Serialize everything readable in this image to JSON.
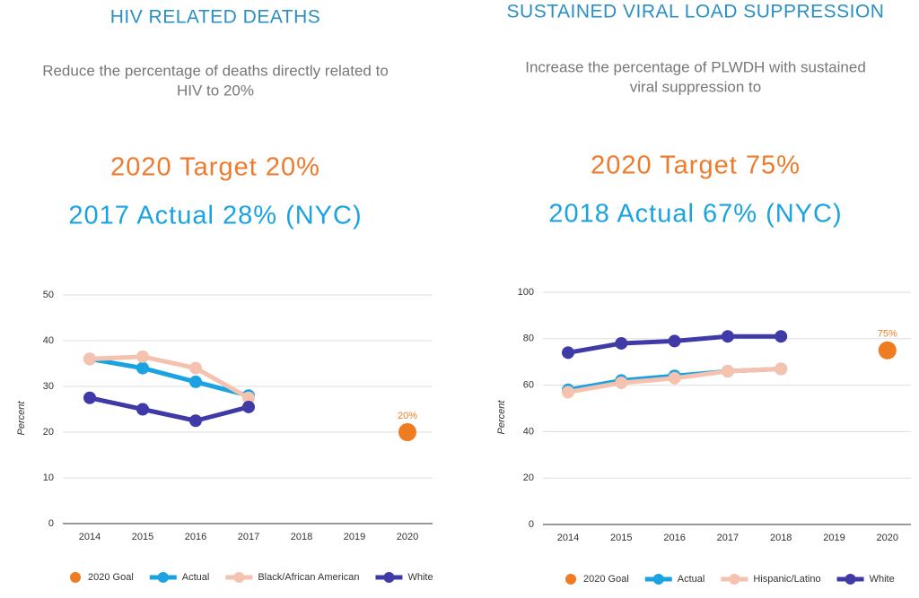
{
  "chart_data": [
    {
      "type": "line",
      "title": "HIV RELATED DEATHS",
      "subtitle": [
        "Reduce the percentage of deaths directly related to",
        "HIV to 20%"
      ],
      "target": "2020 Target 20%",
      "actual": "2017 Actual 28% (NYC)",
      "y_label": "Percent",
      "categories": [
        "2014",
        "2015",
        "2016",
        "2017",
        "2018",
        "2019",
        "2020"
      ],
      "ylim": [
        0,
        50
      ],
      "yticks": [
        0,
        10,
        20,
        30,
        40,
        50
      ],
      "grid": true,
      "series": [
        {
          "name": "2020 Goal",
          "color": "#f07c22",
          "marker_only": true,
          "values": [
            null,
            null,
            null,
            null,
            null,
            null,
            20
          ],
          "value_labels": [
            null,
            null,
            null,
            null,
            null,
            null,
            "20%"
          ]
        },
        {
          "name": "Actual",
          "color": "#1aa3e0",
          "values": [
            36,
            34,
            31,
            28,
            null,
            null,
            null
          ]
        },
        {
          "name": "Black/African American",
          "color": "#f6c2b0",
          "values": [
            36,
            36.5,
            34,
            27.5,
            null,
            null,
            null
          ]
        },
        {
          "name": "White",
          "color": "#3f3aa8",
          "values": [
            27.5,
            25,
            22.5,
            25.5,
            null,
            null,
            null
          ]
        }
      ]
    },
    {
      "type": "line",
      "title": "SUSTAINED VIRAL LOAD SUPPRESSION",
      "subtitle": [
        "Increase the percentage of PLWDH with sustained",
        "viral suppression to"
      ],
      "target": "2020 Target 75%",
      "actual": "2018 Actual 67% (NYC)",
      "y_label": "Percent",
      "categories": [
        "2014",
        "2015",
        "2016",
        "2017",
        "2018",
        "2019",
        "2020"
      ],
      "ylim": [
        0,
        100
      ],
      "yticks": [
        0,
        20,
        40,
        60,
        80,
        100
      ],
      "grid": true,
      "series": [
        {
          "name": "2020 Goal",
          "color": "#f07c22",
          "marker_only": true,
          "values": [
            null,
            null,
            null,
            null,
            null,
            null,
            75
          ],
          "value_labels": [
            null,
            null,
            null,
            null,
            null,
            null,
            "75%"
          ]
        },
        {
          "name": "Actual",
          "color": "#1aa3e0",
          "values": [
            58,
            62,
            64,
            66,
            67,
            null,
            null
          ]
        },
        {
          "name": "Hispanic/Latino",
          "color": "#f6c2b0",
          "values": [
            57,
            61,
            63,
            66,
            67,
            null,
            null
          ]
        },
        {
          "name": "White",
          "color": "#3f3aa8",
          "values": [
            74,
            78,
            79,
            81,
            81,
            null,
            null
          ]
        }
      ]
    }
  ]
}
